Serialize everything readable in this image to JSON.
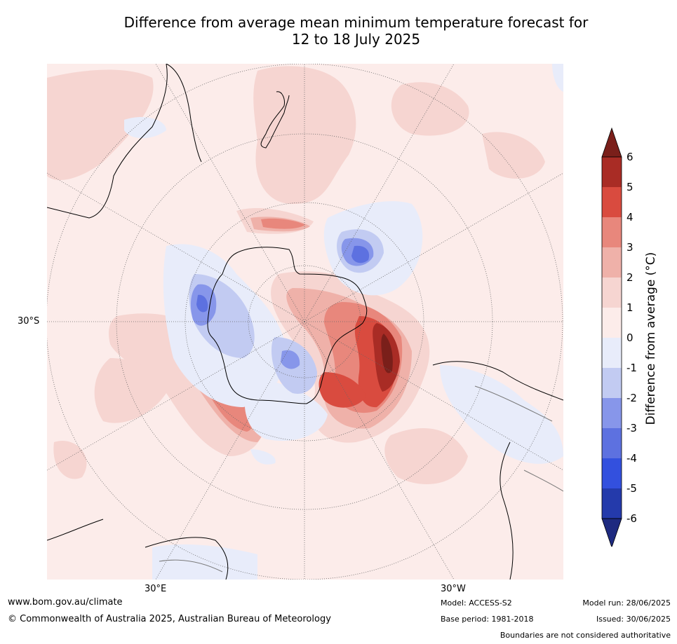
{
  "title": {
    "line1": "Difference from average mean minimum temperature forecast for",
    "line2": "12 to 18 July 2025"
  },
  "map": {
    "projection": "south polar stereographic",
    "lat_label": "30°S",
    "lon_labels": {
      "left": "30°E",
      "right": "30°W"
    },
    "colors": {
      "ocean_background": "#fcecea",
      "coast": "#000000",
      "border": "#7a7a7a",
      "grid": "#666666"
    }
  },
  "colorbar": {
    "label": "Difference from average (°C)",
    "ticks": [
      "6",
      "5",
      "4",
      "3",
      "2",
      "1",
      "0",
      "-1",
      "-2",
      "-3",
      "-4",
      "-5",
      "-6"
    ],
    "colors_top_to_bottom": [
      "#7a1f1a",
      "#a92c25",
      "#d94b3f",
      "#e8877c",
      "#efb1a9",
      "#f6d5d1",
      "#fcecea",
      "#e8ecfa",
      "#c2cbf2",
      "#8796ea",
      "#5d71e0",
      "#3350de",
      "#243aab",
      "#1e2a80"
    ]
  },
  "footer": {
    "website": "www.bom.gov.au/climate",
    "copyright": "© Commonwealth of Australia 2025, Australian Bureau of Meteorology",
    "model": "Model: ACCESS-S2",
    "base_period": "Base period: 1981-2018",
    "model_run": "Model run: 28/06/2025",
    "issued": "Issued: 30/06/2025",
    "boundaries_note": "Boundaries are not considered authoritative"
  }
}
